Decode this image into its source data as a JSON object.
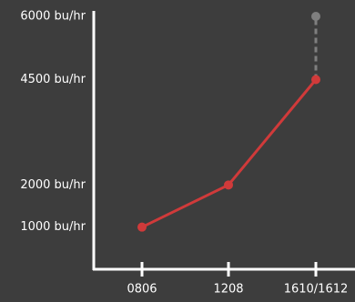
{
  "chart_data": {
    "type": "line",
    "categories": [
      "0806",
      "1208",
      "1610/1612"
    ],
    "series": [
      {
        "color": "#d03a3a",
        "values": [
          1000,
          2000,
          4500
        ]
      }
    ],
    "target": {
      "value": 6000,
      "color": "#7f7f7f"
    },
    "ylim": [
      0,
      6250
    ],
    "yticks": [
      {
        "value": 1000,
        "label": "1000 bu/hr"
      },
      {
        "value": 2000,
        "label": "2000 bu/hr"
      },
      {
        "value": 4500,
        "label": "4500 bu/hr"
      },
      {
        "value": 6000,
        "label": "6000 bu/hr"
      }
    ],
    "grid": false
  }
}
